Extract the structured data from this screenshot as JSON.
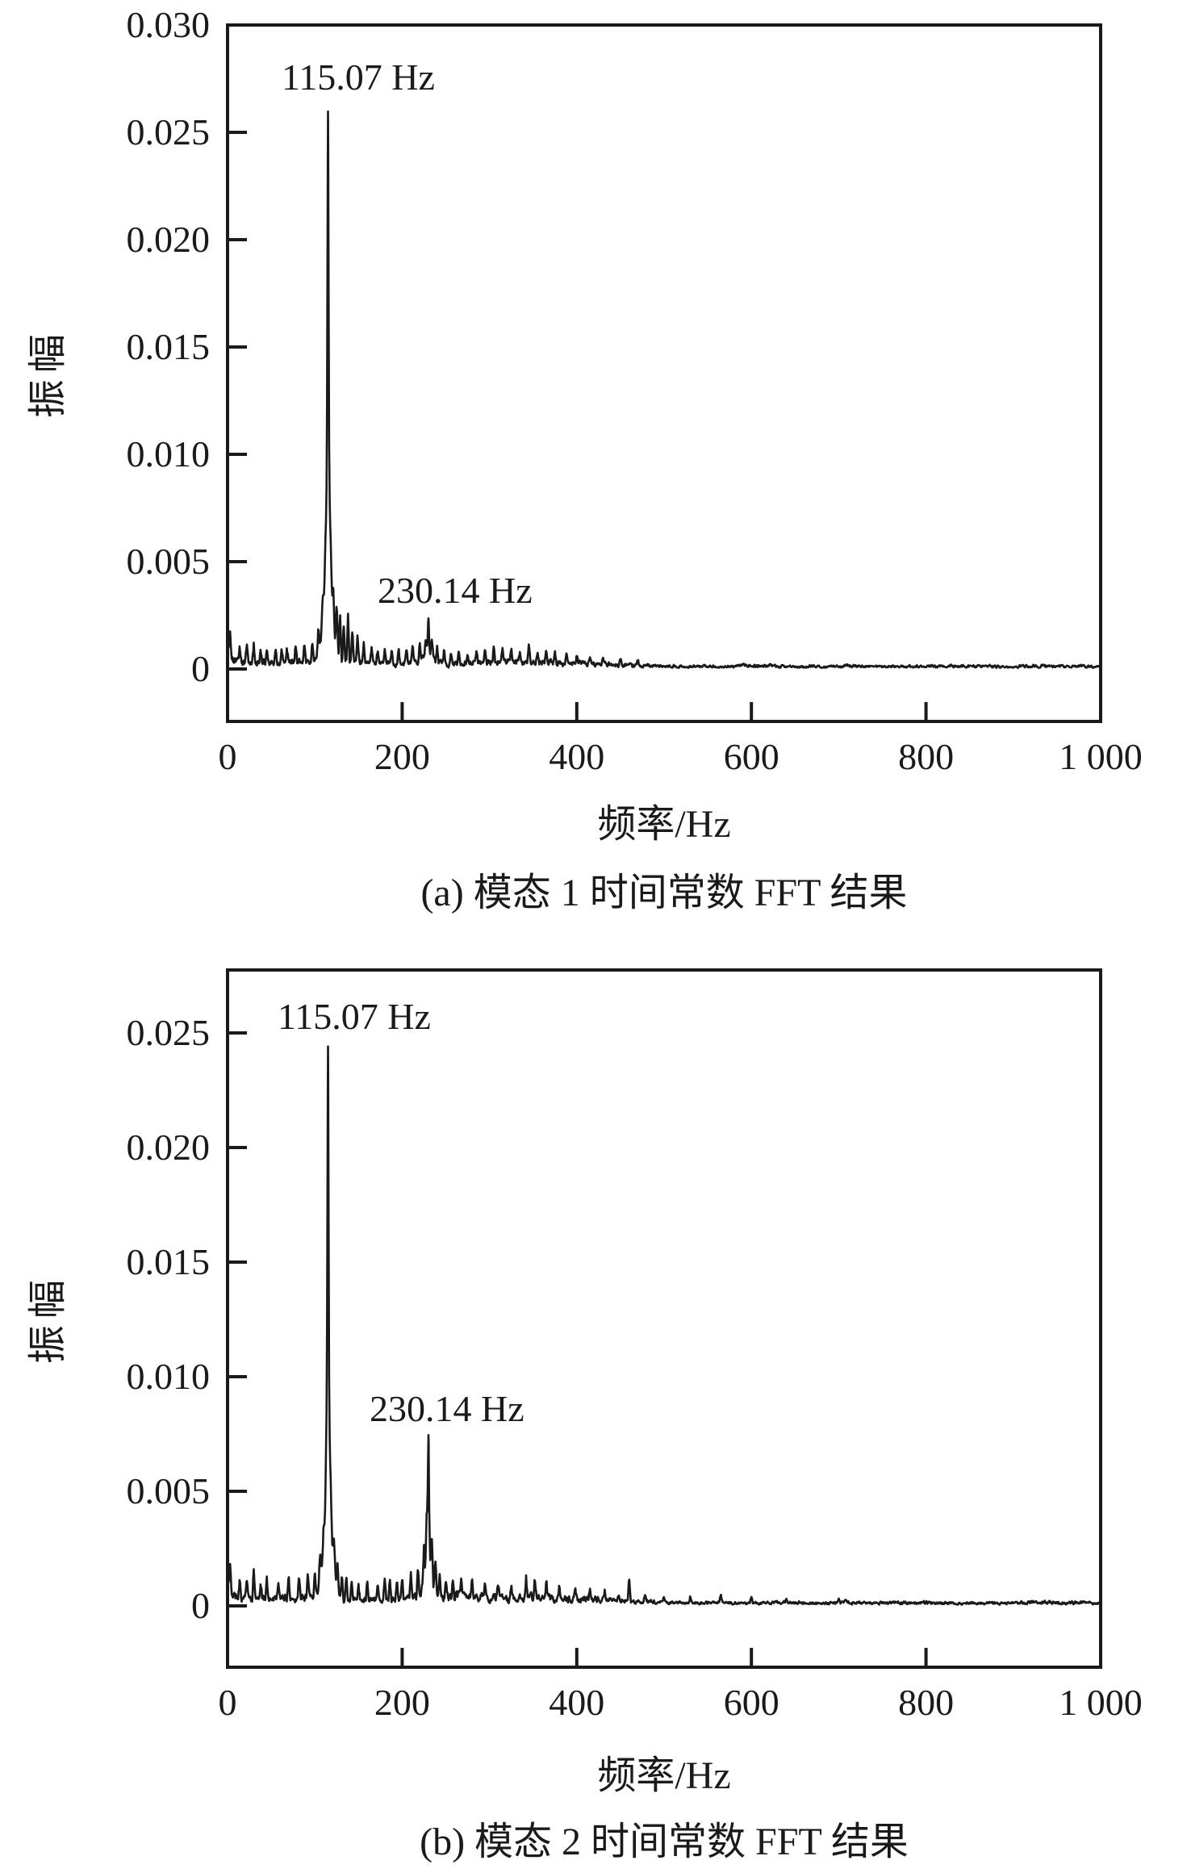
{
  "figure": {
    "background_color": "#ffffff",
    "ink_color": "#1a1a1a"
  },
  "chart_data": [
    {
      "type": "line",
      "panel": "a",
      "title": "(a) 模态 1 时间常数 FFT 结果",
      "xlabel": "频率/Hz",
      "ylabel": "振幅",
      "xlim": [
        0,
        1000
      ],
      "ylim": [
        -0.0024,
        0.03
      ],
      "grid": false,
      "legend": "none",
      "x_ticks": {
        "values": [
          0,
          200,
          400,
          600,
          800,
          1000
        ],
        "labels": [
          "0",
          "200",
          "400",
          "600",
          "800",
          "1 000"
        ]
      },
      "y_ticks": {
        "values": [
          0,
          0.005,
          0.01,
          0.015,
          0.02,
          0.025,
          0.03
        ],
        "labels": [
          "0",
          "0.005",
          "0.010",
          "0.015",
          "0.020",
          "0.025",
          "0.030"
        ]
      },
      "annotations": [
        {
          "text": "115.07 Hz",
          "freq": 115.07,
          "amplitude": 0.0258
        },
        {
          "text": "230.14 Hz",
          "freq": 230.14,
          "amplitude": 0.0022
        }
      ],
      "peaks": [
        {
          "freq": 115.07,
          "amplitude": 0.0258,
          "width_hz": 0.9
        },
        {
          "freq": 230.14,
          "amplitude": 0.0022,
          "width_hz": 0.9
        }
      ],
      "minor_spurs_freq_amp": [
        [
          3,
          0.001
        ],
        [
          14,
          0.0007
        ],
        [
          22,
          0.0008
        ],
        [
          30,
          0.0008
        ],
        [
          38,
          0.0006
        ],
        [
          45,
          0.0006
        ],
        [
          55,
          0.0007
        ],
        [
          62,
          0.0006
        ],
        [
          68,
          0.0007
        ],
        [
          78,
          0.0008
        ],
        [
          88,
          0.0009
        ],
        [
          97,
          0.001
        ],
        [
          104,
          0.0012
        ],
        [
          109,
          0.0012
        ],
        [
          112,
          0.0015
        ],
        [
          118,
          0.0018
        ],
        [
          121,
          0.0015
        ],
        [
          125,
          0.0022
        ],
        [
          129,
          0.002
        ],
        [
          133,
          0.0018
        ],
        [
          138,
          0.0022
        ],
        [
          143,
          0.0016
        ],
        [
          149,
          0.0011
        ],
        [
          156,
          0.0009
        ],
        [
          165,
          0.0008
        ],
        [
          172,
          0.0007
        ],
        [
          180,
          0.0007
        ],
        [
          188,
          0.0007
        ],
        [
          196,
          0.0007
        ],
        [
          205,
          0.0008
        ],
        [
          212,
          0.0008
        ],
        [
          220,
          0.0009
        ],
        [
          227,
          0.0009
        ],
        [
          234,
          0.0009
        ],
        [
          240,
          0.0007
        ],
        [
          248,
          0.0007
        ],
        [
          256,
          0.0006
        ],
        [
          265,
          0.0006
        ],
        [
          275,
          0.0006
        ],
        [
          285,
          0.0006
        ],
        [
          295,
          0.0006
        ],
        [
          305,
          0.0006
        ],
        [
          315,
          0.0005
        ],
        [
          325,
          0.0005
        ],
        [
          335,
          0.0005
        ],
        [
          345,
          0.0009
        ],
        [
          355,
          0.0006
        ],
        [
          365,
          0.0005
        ],
        [
          375,
          0.0005
        ],
        [
          388,
          0.0005
        ],
        [
          400,
          0.0004
        ],
        [
          415,
          0.0004
        ],
        [
          430,
          0.0004
        ],
        [
          450,
          0.0003
        ],
        [
          470,
          0.0003
        ]
      ],
      "noise_floor": {
        "low_freq": 0.00032,
        "high_freq": 0.00012,
        "taper_range_hz": [
          330,
          520
        ]
      }
    },
    {
      "type": "line",
      "panel": "b",
      "title": "(b) 模态 2 时间常数 FFT 结果",
      "xlabel": "频率/Hz",
      "ylabel": "振幅",
      "xlim": [
        0,
        1000
      ],
      "ylim": [
        -0.0027,
        0.0277
      ],
      "grid": false,
      "legend": "none",
      "x_ticks": {
        "values": [
          0,
          200,
          400,
          600,
          800,
          1000
        ],
        "labels": [
          "0",
          "200",
          "400",
          "600",
          "800",
          "1 000"
        ]
      },
      "y_ticks": {
        "values": [
          0,
          0.005,
          0.01,
          0.015,
          0.02,
          0.025
        ],
        "labels": [
          "0",
          "0.005",
          "0.010",
          "0.015",
          "0.020",
          "0.025"
        ]
      },
      "annotations": [
        {
          "text": "115.07 Hz",
          "freq": 115.07,
          "amplitude": 0.0244
        },
        {
          "text": "230.14 Hz",
          "freq": 230.14,
          "amplitude": 0.0072
        }
      ],
      "peaks": [
        {
          "freq": 115.07,
          "amplitude": 0.0244,
          "width_hz": 0.9
        },
        {
          "freq": 230.14,
          "amplitude": 0.0072,
          "width_hz": 0.9
        }
      ],
      "minor_spurs_freq_amp": [
        [
          3,
          0.001
        ],
        [
          14,
          0.0008
        ],
        [
          22,
          0.0009
        ],
        [
          30,
          0.0012
        ],
        [
          38,
          0.0007
        ],
        [
          45,
          0.0007
        ],
        [
          58,
          0.0008
        ],
        [
          70,
          0.0009
        ],
        [
          82,
          0.001
        ],
        [
          92,
          0.0011
        ],
        [
          100,
          0.0012
        ],
        [
          106,
          0.0013
        ],
        [
          110,
          0.001
        ],
        [
          113,
          0.0013
        ],
        [
          118,
          0.0014
        ],
        [
          122,
          0.0012
        ],
        [
          126,
          0.0013
        ],
        [
          131,
          0.0011
        ],
        [
          136,
          0.001
        ],
        [
          142,
          0.0008
        ],
        [
          150,
          0.0007
        ],
        [
          160,
          0.0008
        ],
        [
          172,
          0.0008
        ],
        [
          180,
          0.0008
        ],
        [
          186,
          0.0009
        ],
        [
          194,
          0.0008
        ],
        [
          200,
          0.0009
        ],
        [
          210,
          0.0011
        ],
        [
          218,
          0.0013
        ],
        [
          225,
          0.0016
        ],
        [
          228,
          0.002
        ],
        [
          234,
          0.0018
        ],
        [
          238,
          0.0013
        ],
        [
          243,
          0.0011
        ],
        [
          250,
          0.0008
        ],
        [
          258,
          0.0008
        ],
        [
          268,
          0.0007
        ],
        [
          280,
          0.0007
        ],
        [
          295,
          0.0007
        ],
        [
          310,
          0.0006
        ],
        [
          325,
          0.0006
        ],
        [
          342,
          0.001
        ],
        [
          352,
          0.0008
        ],
        [
          365,
          0.0007
        ],
        [
          380,
          0.0006
        ],
        [
          398,
          0.0005
        ],
        [
          415,
          0.0005
        ],
        [
          432,
          0.0004
        ],
        [
          448,
          0.0004
        ],
        [
          460,
          0.0011
        ],
        [
          478,
          0.0004
        ],
        [
          500,
          0.0003
        ],
        [
          530,
          0.0003
        ],
        [
          565,
          0.0003
        ],
        [
          600,
          0.0003
        ],
        [
          640,
          0.0002
        ],
        [
          700,
          0.0002
        ]
      ],
      "noise_floor": {
        "low_freq": 0.00035,
        "high_freq": 0.00013,
        "taper_range_hz": [
          330,
          520
        ]
      }
    }
  ]
}
